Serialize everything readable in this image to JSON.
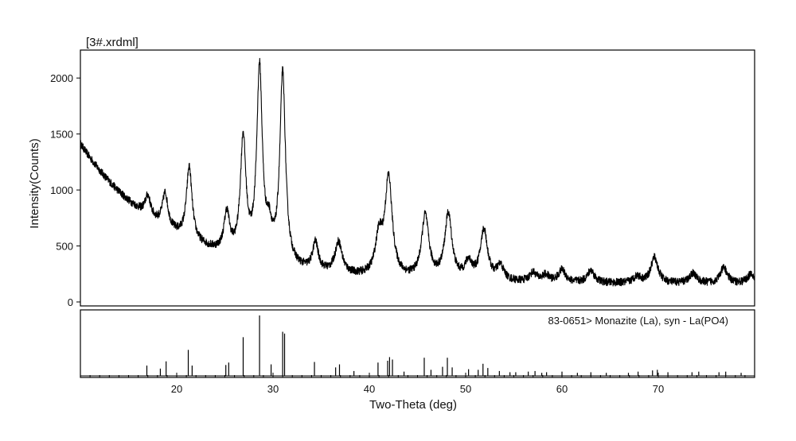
{
  "chart_data": {
    "type": "line",
    "title": "[3#.xrdml]",
    "xlabel": "Two-Theta (deg)",
    "ylabel": "Intensity(Counts)",
    "xlim": [
      10,
      80
    ],
    "ylim": [
      0,
      2200
    ],
    "x_ticks": [
      20,
      30,
      40,
      50,
      60,
      70
    ],
    "y_ticks": [
      0,
      500,
      1000,
      1500,
      2000
    ],
    "grid": false,
    "pattern_peaks": [
      {
        "two_theta": 17.0,
        "intensity": 180
      },
      {
        "two_theta": 18.8,
        "intensity": 300
      },
      {
        "two_theta": 21.3,
        "intensity": 650
      },
      {
        "two_theta": 25.2,
        "intensity": 350
      },
      {
        "two_theta": 26.9,
        "intensity": 1050
      },
      {
        "two_theta": 28.6,
        "intensity": 1700
      },
      {
        "two_theta": 29.6,
        "intensity": 230
      },
      {
        "two_theta": 31.0,
        "intensity": 1710
      },
      {
        "two_theta": 34.4,
        "intensity": 250
      },
      {
        "two_theta": 36.8,
        "intensity": 280
      },
      {
        "two_theta": 41.0,
        "intensity": 330
      },
      {
        "two_theta": 42.0,
        "intensity": 870
      },
      {
        "two_theta": 45.8,
        "intensity": 560
      },
      {
        "two_theta": 48.2,
        "intensity": 580
      },
      {
        "two_theta": 50.3,
        "intensity": 150
      },
      {
        "two_theta": 51.9,
        "intensity": 450
      },
      {
        "two_theta": 53.6,
        "intensity": 130
      },
      {
        "two_theta": 57.0,
        "intensity": 80
      },
      {
        "two_theta": 58.3,
        "intensity": 60
      },
      {
        "two_theta": 60.0,
        "intensity": 110
      },
      {
        "two_theta": 63.0,
        "intensity": 110
      },
      {
        "two_theta": 67.8,
        "intensity": 60
      },
      {
        "two_theta": 69.6,
        "intensity": 230
      },
      {
        "two_theta": 73.6,
        "intensity": 90
      },
      {
        "two_theta": 76.8,
        "intensity": 140
      },
      {
        "two_theta": 79.6,
        "intensity": 80
      }
    ],
    "reference_card": {
      "label": "83-0651> Monazite (La), syn - La(PO4)",
      "lines": [
        {
          "two_theta": 16.9,
          "rel": 0.17
        },
        {
          "two_theta": 18.3,
          "rel": 0.12
        },
        {
          "two_theta": 18.9,
          "rel": 0.24
        },
        {
          "two_theta": 21.2,
          "rel": 0.43
        },
        {
          "two_theta": 21.6,
          "rel": 0.17
        },
        {
          "two_theta": 25.1,
          "rel": 0.18
        },
        {
          "two_theta": 25.4,
          "rel": 0.22
        },
        {
          "two_theta": 26.9,
          "rel": 0.64
        },
        {
          "two_theta": 28.6,
          "rel": 1.0
        },
        {
          "two_theta": 29.8,
          "rel": 0.19
        },
        {
          "two_theta": 31.0,
          "rel": 0.73
        },
        {
          "two_theta": 31.2,
          "rel": 0.7
        },
        {
          "two_theta": 34.3,
          "rel": 0.23
        },
        {
          "two_theta": 36.5,
          "rel": 0.14
        },
        {
          "two_theta": 36.9,
          "rel": 0.19
        },
        {
          "two_theta": 38.4,
          "rel": 0.08
        },
        {
          "two_theta": 40.9,
          "rel": 0.22
        },
        {
          "two_theta": 41.9,
          "rel": 0.25
        },
        {
          "two_theta": 42.1,
          "rel": 0.31
        },
        {
          "two_theta": 42.4,
          "rel": 0.27
        },
        {
          "two_theta": 43.6,
          "rel": 0.07
        },
        {
          "two_theta": 45.7,
          "rel": 0.3
        },
        {
          "two_theta": 46.4,
          "rel": 0.1
        },
        {
          "two_theta": 47.6,
          "rel": 0.15
        },
        {
          "two_theta": 48.1,
          "rel": 0.3
        },
        {
          "two_theta": 48.6,
          "rel": 0.14
        },
        {
          "two_theta": 50.3,
          "rel": 0.11
        },
        {
          "two_theta": 51.3,
          "rel": 0.1
        },
        {
          "two_theta": 51.8,
          "rel": 0.2
        },
        {
          "two_theta": 52.3,
          "rel": 0.13
        },
        {
          "two_theta": 53.5,
          "rel": 0.08
        },
        {
          "two_theta": 54.6,
          "rel": 0.06
        },
        {
          "two_theta": 55.2,
          "rel": 0.06
        },
        {
          "two_theta": 56.5,
          "rel": 0.07
        },
        {
          "two_theta": 57.2,
          "rel": 0.08
        },
        {
          "two_theta": 57.9,
          "rel": 0.05
        },
        {
          "two_theta": 58.4,
          "rel": 0.06
        },
        {
          "two_theta": 60.0,
          "rel": 0.07
        },
        {
          "two_theta": 61.6,
          "rel": 0.05
        },
        {
          "two_theta": 63.0,
          "rel": 0.06
        },
        {
          "two_theta": 64.6,
          "rel": 0.05
        },
        {
          "two_theta": 66.9,
          "rel": 0.05
        },
        {
          "two_theta": 67.9,
          "rel": 0.07
        },
        {
          "two_theta": 69.4,
          "rel": 0.09
        },
        {
          "two_theta": 69.9,
          "rel": 0.1
        },
        {
          "two_theta": 71.0,
          "rel": 0.06
        },
        {
          "two_theta": 73.5,
          "rel": 0.06
        },
        {
          "two_theta": 74.2,
          "rel": 0.07
        },
        {
          "two_theta": 76.3,
          "rel": 0.06
        },
        {
          "two_theta": 77.0,
          "rel": 0.07
        },
        {
          "two_theta": 78.6,
          "rel": 0.05
        }
      ]
    }
  }
}
